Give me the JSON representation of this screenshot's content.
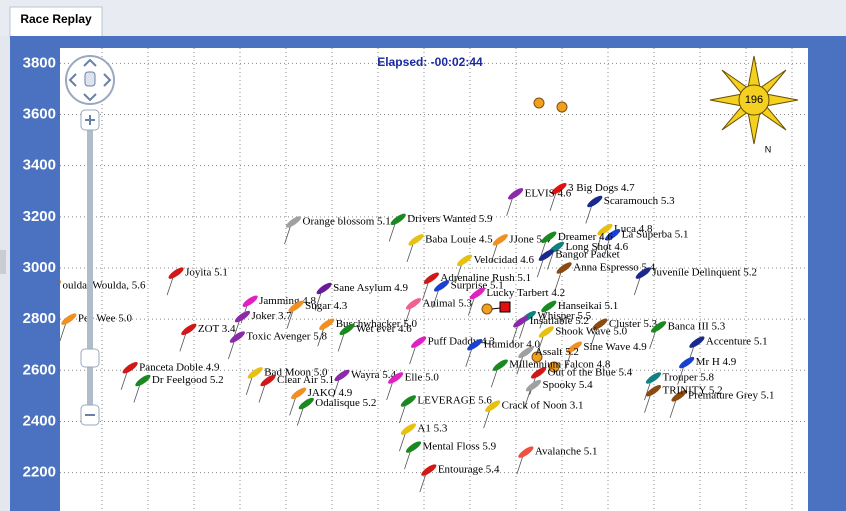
{
  "tab": "Race Replay",
  "map": {
    "elapsed": "Elapsed: -00:02:44",
    "compass": {
      "heading": 196,
      "north": "N"
    },
    "xlim": [
      0,
      2930
    ],
    "ylim": [
      2050,
      3860
    ],
    "yticks": [
      2200,
      2400,
      2600,
      2800,
      3000,
      3200,
      3400,
      3600,
      3800
    ],
    "boats": [
      {
        "name": "3 Big Dogs 4.7",
        "color": "#e01010",
        "x": 1990,
        "y": 3310
      },
      {
        "name": "ELVIS 4.6",
        "color": "#8a2aa8",
        "x": 1820,
        "y": 3290
      },
      {
        "name": "Scaramouch 5.3",
        "color": "#1a2a8c",
        "x": 2130,
        "y": 3260
      },
      {
        "name": "Orange blossom 5.1",
        "color": "#a0a0a0",
        "x": 950,
        "y": 3180
      },
      {
        "name": "Drivers Wanted 5.9",
        "color": "#1a8a20",
        "x": 1360,
        "y": 3190
      },
      {
        "name": "Luca 4.8",
        "color": "#e8c010",
        "x": 2170,
        "y": 3150
      },
      {
        "name": "La Superba 5.1",
        "color": "#1a40d0",
        "x": 2200,
        "y": 3130
      },
      {
        "name": "Baba Louie 4.5",
        "color": "#e8c010",
        "x": 1430,
        "y": 3110
      },
      {
        "name": "JJone 5.4",
        "color": "#f09020",
        "x": 1760,
        "y": 3110
      },
      {
        "name": "Dreamer 4.6",
        "color": "#1a8a20",
        "x": 1950,
        "y": 3120
      },
      {
        "name": "Long Shot 4.6",
        "color": "#108080",
        "x": 1980,
        "y": 3080
      },
      {
        "name": "Bangor Packet",
        "color": "#1a2a8c",
        "x": 1940,
        "y": 3050
      },
      {
        "name": "Velocidad 4.6",
        "color": "#e8c010",
        "x": 1620,
        "y": 3030
      },
      {
        "name": "Anna Espresso 5.4",
        "color": "#8a4a10",
        "x": 2010,
        "y": 3000
      },
      {
        "name": "Juvenile Delinquent 5.2",
        "color": "#1a2a8c",
        "x": 2320,
        "y": 2980
      },
      {
        "name": "Joyita 5.1",
        "color": "#d01818",
        "x": 490,
        "y": 2980
      },
      {
        "name": "Adrenaline Rush 5.1",
        "color": "#d01818",
        "x": 1490,
        "y": 2960
      },
      {
        "name": "oulda, Woulda, 5.6",
        "color": "#f09020",
        "x": 10,
        "y": 2930
      },
      {
        "name": "Sane Asylum 4.9",
        "color": "#6a1a9a",
        "x": 1070,
        "y": 2920
      },
      {
        "name": "Surprise 5.1",
        "color": "#1a40d0",
        "x": 1530,
        "y": 2930
      },
      {
        "name": "Lucky Tarbert 4.2",
        "color": "#e020c0",
        "x": 1670,
        "y": 2900
      },
      {
        "name": "Jamming 4.8",
        "color": "#e020c0",
        "x": 780,
        "y": 2870
      },
      {
        "name": "Animal 5.3",
        "color": "#f06090",
        "x": 1420,
        "y": 2860
      },
      {
        "name": "Sugar 4.3",
        "color": "#f09020",
        "x": 960,
        "y": 2850
      },
      {
        "name": "Hanseikai 5.1",
        "color": "#1a8a20",
        "x": 1950,
        "y": 2850
      },
      {
        "name": "Joker 3.7",
        "color": "#8a2aa8",
        "x": 750,
        "y": 2810
      },
      {
        "name": "Pee Wee 5.0",
        "color": "#f09020",
        "x": 70,
        "y": 2800
      },
      {
        "name": "Whisper 5.5",
        "color": "#108080",
        "x": 1870,
        "y": 2810
      },
      {
        "name": "Cluster 5.3",
        "color": "#8a4a10",
        "x": 2150,
        "y": 2780
      },
      {
        "name": "Banca III 5.3",
        "color": "#1a8a20",
        "x": 2380,
        "y": 2770
      },
      {
        "name": "Buschwhacker 5.0",
        "color": "#f09020",
        "x": 1080,
        "y": 2780
      },
      {
        "name": "Insatiable 5.2",
        "color": "#8a2aa8",
        "x": 1840,
        "y": 2790
      },
      {
        "name": "ZOT 3.4",
        "color": "#d01818",
        "x": 540,
        "y": 2760
      },
      {
        "name": "Wet ever 4.6",
        "color": "#1a8a20",
        "x": 1160,
        "y": 2760
      },
      {
        "name": "Toxic Avenger 5.8",
        "color": "#8a2aa8",
        "x": 730,
        "y": 2730
      },
      {
        "name": "Shook Wave 5.0",
        "color": "#e8c010",
        "x": 1940,
        "y": 2750
      },
      {
        "name": "Puff Daddy 4.3",
        "color": "#e020c0",
        "x": 1440,
        "y": 2710
      },
      {
        "name": "Accenture 5.1",
        "color": "#1a2a8c",
        "x": 2530,
        "y": 2710
      },
      {
        "name": "Sine Wave 4.9",
        "color": "#f09020",
        "x": 2050,
        "y": 2690
      },
      {
        "name": "Humidor 4.0",
        "color": "#1a40d0",
        "x": 1660,
        "y": 2700
      },
      {
        "name": "Assalt 5.2",
        "color": "#a0a0a0",
        "x": 1860,
        "y": 2670
      },
      {
        "name": "Mr H 4.9",
        "color": "#1a40d0",
        "x": 2490,
        "y": 2630
      },
      {
        "name": "Panceta Doble 4.9",
        "color": "#d01818",
        "x": 310,
        "y": 2610
      },
      {
        "name": "Millennium Falcon 4.8",
        "color": "#1a8a20",
        "x": 1760,
        "y": 2620
      },
      {
        "name": "Out of the Blue 5.4",
        "color": "#d01818",
        "x": 1910,
        "y": 2590
      },
      {
        "name": "Dr Feelgood 5.2",
        "color": "#1a8a20",
        "x": 360,
        "y": 2560
      },
      {
        "name": "Bad Moon 5.0",
        "color": "#e8c010",
        "x": 800,
        "y": 2590
      },
      {
        "name": "Clear Air 5.1",
        "color": "#d01818",
        "x": 850,
        "y": 2560
      },
      {
        "name": "Wayra 5.4",
        "color": "#8a2aa8",
        "x": 1140,
        "y": 2580
      },
      {
        "name": "Elle 5.0",
        "color": "#e020c0",
        "x": 1350,
        "y": 2570
      },
      {
        "name": "Trouper 5.8",
        "color": "#108080",
        "x": 2360,
        "y": 2570
      },
      {
        "name": "Spooky 5.4",
        "color": "#a0a0a0",
        "x": 1890,
        "y": 2540
      },
      {
        "name": "Premature Grey 5.1",
        "color": "#8a4a10",
        "x": 2460,
        "y": 2500
      },
      {
        "name": "TRINITY 5.2",
        "color": "#8a4a10",
        "x": 2360,
        "y": 2520
      },
      {
        "name": "JAKO 4.9",
        "color": "#f09020",
        "x": 970,
        "y": 2510
      },
      {
        "name": "Odalisque 5.2",
        "color": "#1a8a20",
        "x": 1000,
        "y": 2470
      },
      {
        "name": "LEVERAGE 5.6",
        "color": "#1a8a20",
        "x": 1400,
        "y": 2480
      },
      {
        "name": "Crack of Noon 3.1",
        "color": "#e8c010",
        "x": 1730,
        "y": 2460
      },
      {
        "name": "A1 5.3",
        "color": "#e8c010",
        "x": 1400,
        "y": 2370
      },
      {
        "name": "Mental Floss 5.9",
        "color": "#1a8a20",
        "x": 1420,
        "y": 2300
      },
      {
        "name": "Avalanche 5.1",
        "color": "#f05040",
        "x": 1860,
        "y": 2280
      },
      {
        "name": "Entourage 5.4",
        "color": "#d01818",
        "x": 1480,
        "y": 2210
      }
    ]
  }
}
